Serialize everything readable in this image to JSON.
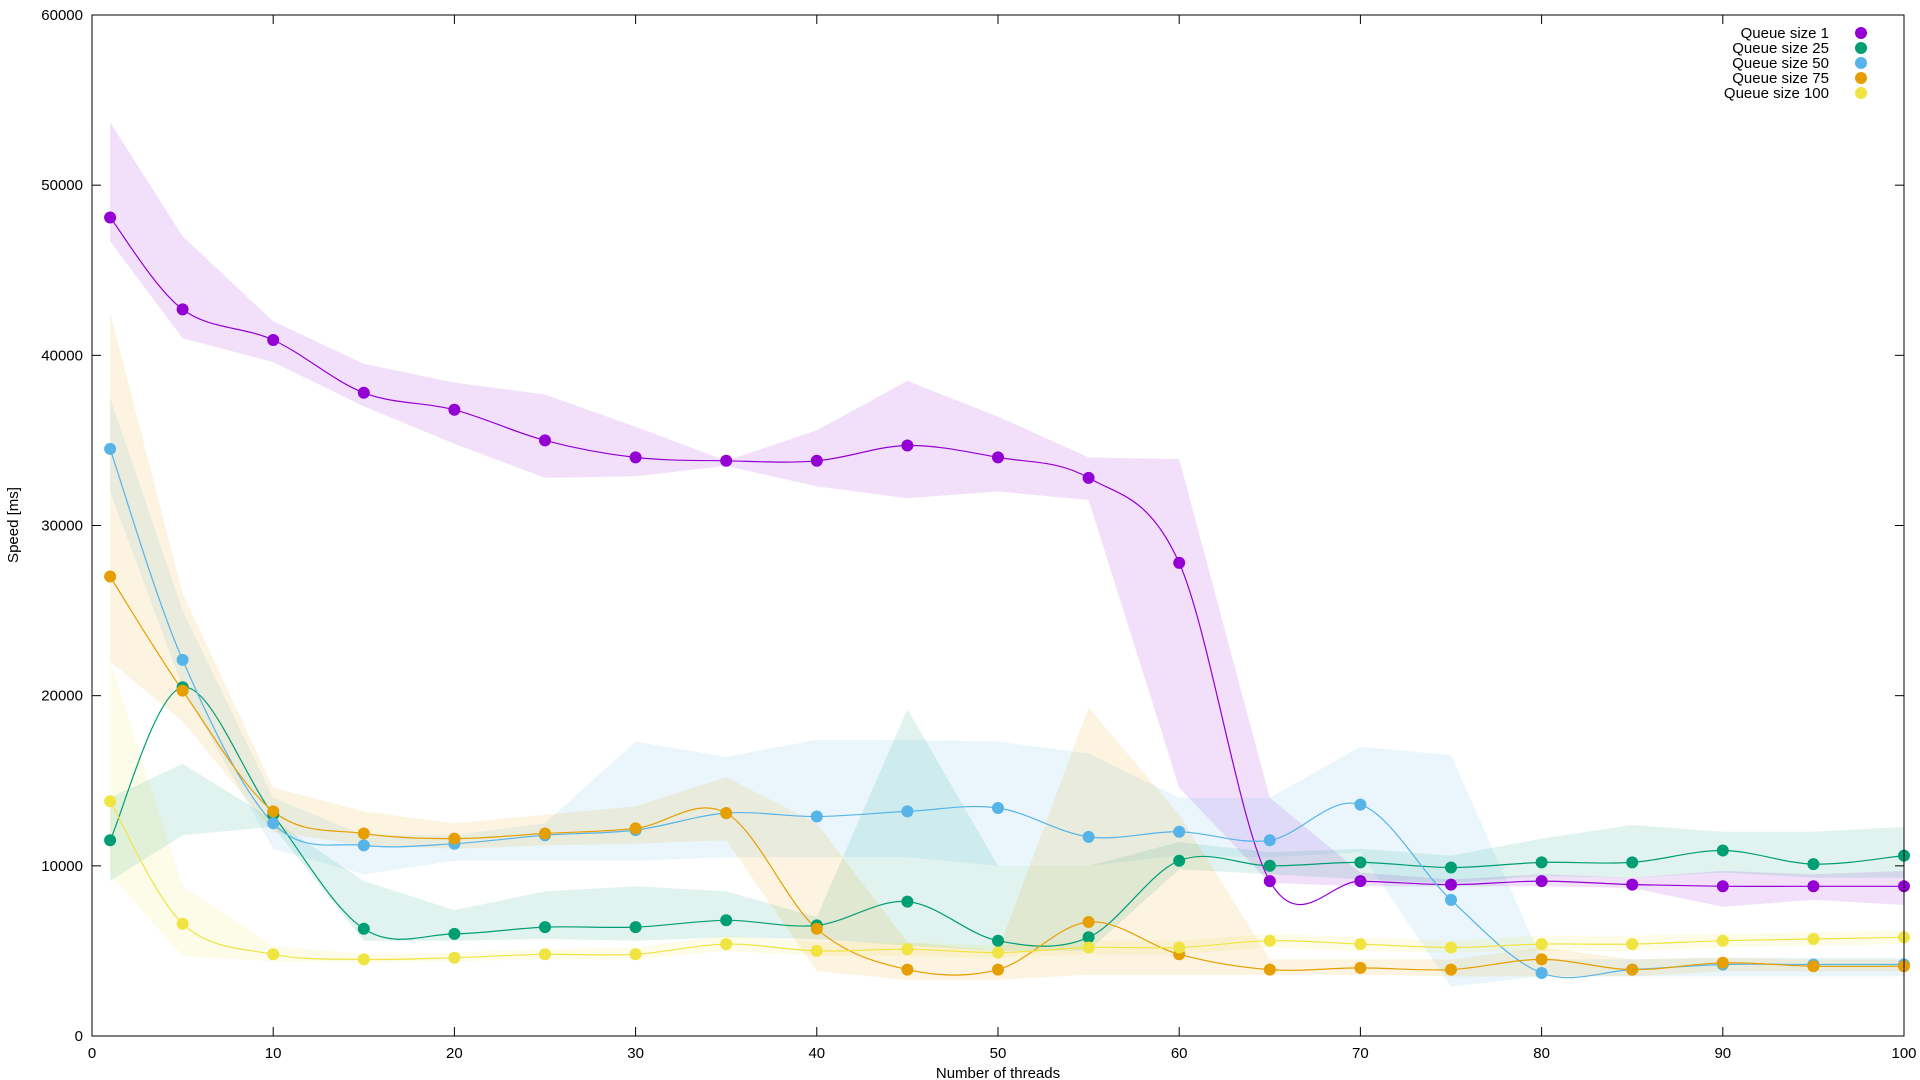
{
  "chart_data": {
    "type": "line",
    "title": "",
    "xlabel": "Number of threads",
    "ylabel": "Speed [ms]",
    "xlim": [
      0,
      100
    ],
    "ylim": [
      0,
      60000
    ],
    "xticks": [
      0,
      10,
      20,
      30,
      40,
      50,
      60,
      70,
      80,
      90,
      100
    ],
    "yticks": [
      0,
      10000,
      20000,
      30000,
      40000,
      50000,
      60000
    ],
    "grid": false,
    "legend_position": "top-right",
    "x": [
      1,
      5,
      10,
      15,
      20,
      25,
      30,
      35,
      40,
      45,
      50,
      55,
      60,
      65,
      70,
      75,
      80,
      85,
      90,
      95,
      100
    ],
    "series": [
      {
        "name": "Queue size 1",
        "color": "#9400d3",
        "values": [
          48100,
          42700,
          40900,
          37800,
          36800,
          35000,
          34000,
          33800,
          33800,
          34700,
          34000,
          32800,
          27800,
          9100,
          9100,
          8900,
          9100,
          8900,
          8800,
          8800,
          8800
        ],
        "band_low": [
          46700,
          41000,
          39600,
          37000,
          34800,
          32800,
          32900,
          33500,
          32300,
          31600,
          32000,
          31500,
          14600,
          9000,
          8800,
          8800,
          8800,
          8700,
          7600,
          8000,
          7700
        ],
        "band_high": [
          53700,
          47000,
          42000,
          39500,
          38400,
          37700,
          35800,
          33800,
          35600,
          38500,
          36400,
          34000,
          33900,
          14000,
          9600,
          9200,
          9500,
          9300,
          9700,
          9500,
          9700
        ]
      },
      {
        "name": "Queue size 25",
        "color": "#009e73",
        "values": [
          11500,
          20500,
          13000,
          6300,
          6000,
          6400,
          6400,
          6800,
          6500,
          7900,
          5600,
          5800,
          10300,
          10000,
          10200,
          9900,
          10200,
          10200,
          10900,
          10100,
          10600
        ],
        "band_low": [
          9100,
          11800,
          12300,
          5600,
          5600,
          5700,
          5600,
          5800,
          5700,
          5300,
          5000,
          5000,
          9800,
          9500,
          9200,
          9000,
          9400,
          9300,
          9600,
          9300,
          9300
        ],
        "band_high": [
          14000,
          16000,
          12700,
          9100,
          7400,
          8500,
          8800,
          8500,
          7000,
          19200,
          10000,
          10000,
          11400,
          10800,
          11000,
          10600,
          11600,
          12400,
          12000,
          12000,
          12300
        ]
      },
      {
        "name": "Queue size 50",
        "color": "#56b4e9",
        "values": [
          34500,
          22100,
          12500,
          11200,
          11300,
          11800,
          12100,
          13100,
          12900,
          13200,
          13400,
          11700,
          12000,
          11500,
          13600,
          8000,
          3700,
          3900,
          4200,
          4200,
          4200
        ],
        "band_low": [
          32000,
          20500,
          11000,
          9500,
          10300,
          10300,
          10300,
          10500,
          10500,
          10500,
          10000,
          10000,
          10600,
          10500,
          10800,
          2900,
          3500,
          3500,
          3500,
          3500,
          3500
        ],
        "band_high": [
          37500,
          25000,
          14000,
          11800,
          11800,
          12500,
          17300,
          16400,
          17400,
          17400,
          17300,
          16600,
          14000,
          14000,
          17000,
          16500,
          4500,
          4500,
          4600,
          4600,
          4600
        ]
      },
      {
        "name": "Queue size 75",
        "color": "#e69f00",
        "values": [
          27000,
          20300,
          13200,
          11900,
          11600,
          11900,
          12200,
          13100,
          6300,
          3900,
          3900,
          6700,
          4800,
          3900,
          4000,
          3900,
          4500,
          3900,
          4300,
          4100,
          4100
        ],
        "band_low": [
          22000,
          18500,
          12000,
          11200,
          11000,
          11200,
          11300,
          11500,
          3800,
          3300,
          3300,
          3600,
          3600,
          3600,
          3600,
          3500,
          3500,
          3500,
          3800,
          3800,
          3800
        ],
        "band_high": [
          42500,
          26000,
          14600,
          13200,
          12500,
          13000,
          13500,
          15200,
          12500,
          5500,
          5000,
          19300,
          13000,
          4500,
          4500,
          4500,
          5200,
          4500,
          4600,
          4500,
          4500
        ]
      },
      {
        "name": "Queue size 100",
        "color": "#f0e442",
        "values": [
          13800,
          6600,
          4800,
          4500,
          4600,
          4800,
          4800,
          5400,
          5000,
          5100,
          4900,
          5200,
          5200,
          5600,
          5400,
          5200,
          5400,
          5400,
          5600,
          5700,
          5800
        ],
        "band_low": [
          9500,
          4700,
          4400,
          4300,
          4400,
          4500,
          4500,
          5000,
          4700,
          4700,
          4600,
          4800,
          4800,
          5200,
          5000,
          4900,
          5000,
          5000,
          5200,
          5300,
          5400
        ],
        "band_high": [
          22000,
          8800,
          5300,
          4800,
          4900,
          5100,
          5200,
          5900,
          5500,
          5500,
          5300,
          5600,
          5600,
          6000,
          5800,
          5600,
          5900,
          5900,
          6000,
          6100,
          6200
        ]
      }
    ]
  }
}
